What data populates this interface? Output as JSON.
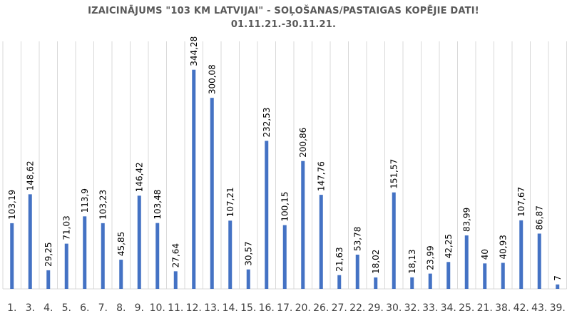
{
  "chart_data": {
    "type": "bar",
    "title": "IZAICINĀJUMS \"103 KM LATVIJAI\" - SOĻOŠANAS/PASTAIGAS KOPĒJIE DATI!",
    "subtitle": "01.11.21.-30.11.21.",
    "categories": [
      "1.",
      "3.",
      "4.",
      "5.",
      "6.",
      "7.",
      "8.",
      "9.",
      "10.",
      "11.",
      "12.",
      "13.",
      "14.",
      "15.",
      "16.",
      "17.",
      "20.",
      "26.",
      "27.",
      "22.",
      "29.",
      "30.",
      "32.",
      "33.",
      "34.",
      "25.",
      "21.",
      "38.",
      "42.",
      "43.",
      "39."
    ],
    "value_labels": [
      "103,19",
      "148,62",
      "29,25",
      "71,03",
      "113,9",
      "103,23",
      "45,85",
      "146,42",
      "103,48",
      "27,64",
      "344,28",
      "300,08",
      "107,21",
      "30,57",
      "232,53",
      "100,15",
      "200,86",
      "147,76",
      "21,63",
      "53,78",
      "18,02",
      "151,57",
      "18,13",
      "23,99",
      "42,25",
      "83,99",
      "40",
      "40,93",
      "107,67",
      "86,87",
      "7"
    ],
    "values": [
      103.19,
      148.62,
      29.25,
      71.03,
      113.9,
      103.23,
      45.85,
      146.42,
      103.48,
      27.64,
      344.28,
      300.08,
      107.21,
      30.57,
      232.53,
      100.15,
      200.86,
      147.76,
      21.63,
      53.78,
      18.02,
      151.57,
      18.13,
      23.99,
      42.25,
      83.99,
      40,
      40.93,
      107.67,
      86.87,
      7
    ],
    "ylim": [
      0,
      400
    ],
    "grid": "vertical",
    "bar_color": "#4472C4",
    "grid_color": "#D9D9D9",
    "xlabel": "",
    "ylabel": ""
  }
}
